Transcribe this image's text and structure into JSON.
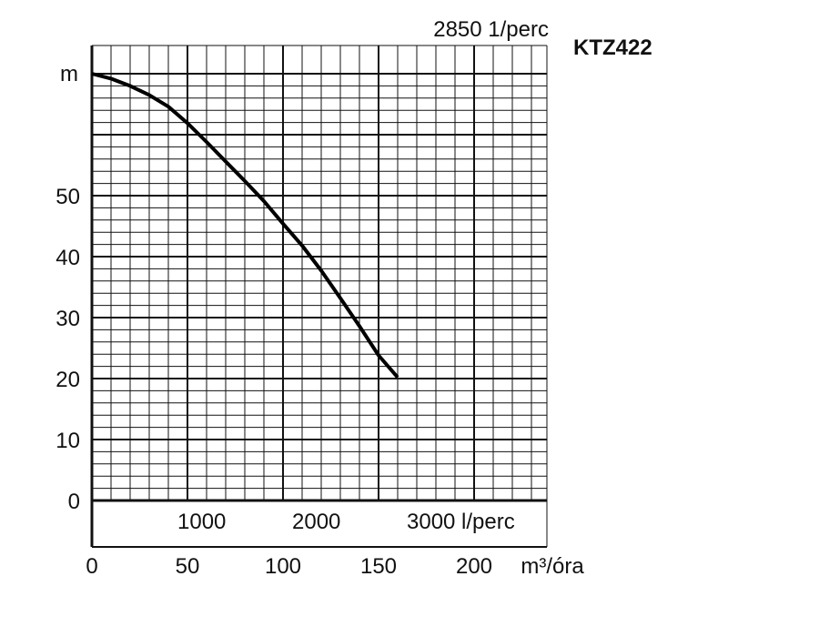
{
  "chart_data": {
    "type": "line",
    "title": "KTZ422",
    "speed_label": "2850 1/perc",
    "y_unit": "m",
    "x_unit": "m³/óra",
    "xlim": [
      0,
      240
    ],
    "ylim": [
      0,
      70
    ],
    "y_ticks": [
      0,
      10,
      20,
      30,
      40,
      50
    ],
    "y_tick_labels": [
      "0",
      "10",
      "20",
      "30",
      "40",
      "50"
    ],
    "x_ticks": [
      0,
      50,
      100,
      150,
      200
    ],
    "x_tick_labels": [
      "0",
      "50",
      "100",
      "150",
      "200"
    ],
    "lpm_ticks": [
      {
        "lpm": 1000,
        "label": "1000"
      },
      {
        "lpm": 2000,
        "label": "2000"
      },
      {
        "lpm": 3000,
        "label": "3000 l/perc"
      }
    ],
    "grid": true,
    "series": [
      {
        "x": [
          0,
          10,
          20,
          30,
          40,
          50,
          60,
          70,
          80,
          90,
          100,
          110,
          120,
          130,
          140,
          150,
          160
        ],
        "y": [
          70,
          69.2,
          68,
          66.5,
          64.6,
          61.9,
          58.8,
          55.6,
          52.4,
          49.1,
          45.4,
          41.8,
          37.7,
          33.2,
          28.6,
          23.8,
          20.2
        ]
      }
    ]
  }
}
